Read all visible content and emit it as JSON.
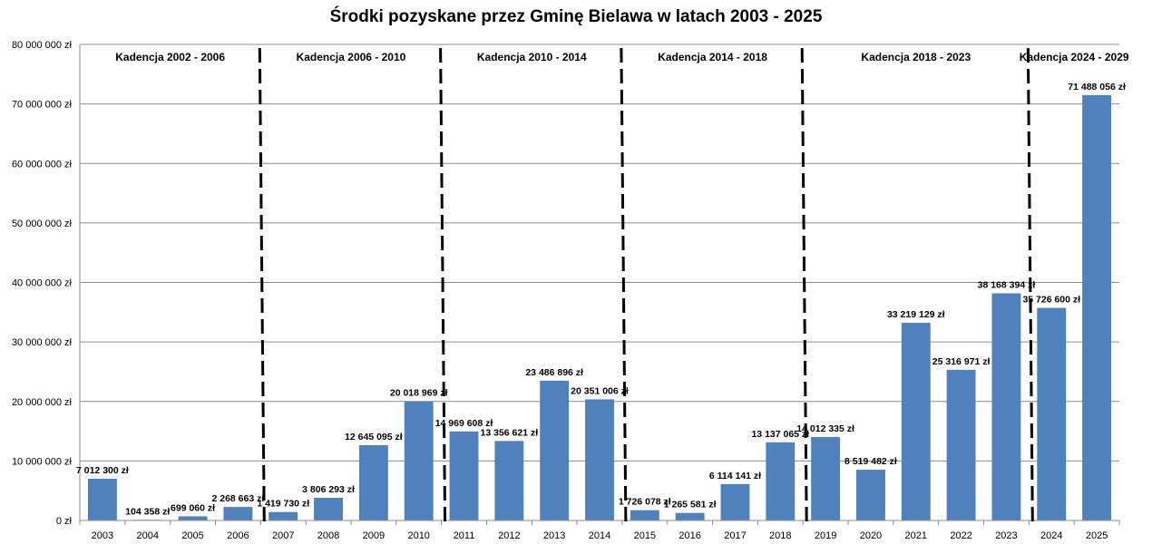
{
  "chart_data": {
    "type": "bar",
    "title": "Środki pozyskane przez Gminę Bielawa w latach 2003 - 2025",
    "xlabel": "",
    "ylabel": "",
    "ylim": [
      0,
      80000000
    ],
    "y_ticks": [
      0,
      10000000,
      20000000,
      30000000,
      40000000,
      50000000,
      60000000,
      70000000,
      80000000
    ],
    "y_tick_labels": [
      "0 zł",
      "10 000 000 zł",
      "20 000 000 zł",
      "30 000 000 zł",
      "40 000 000 zł",
      "50 000 000 zł",
      "60 000 000 zł",
      "70 000 000 zł",
      "80 000 000 zł"
    ],
    "categories": [
      "2003",
      "2004",
      "2005",
      "2006",
      "2007",
      "2008",
      "2009",
      "2010",
      "2011",
      "2012",
      "2013",
      "2014",
      "2015",
      "2016",
      "2017",
      "2018",
      "2019",
      "2020",
      "2021",
      "2022",
      "2023",
      "2024",
      "2025"
    ],
    "values": [
      7012300,
      104358,
      699060,
      2268663,
      1419730,
      3806293,
      12645095,
      20018969,
      14969608,
      13356621,
      23486896,
      20351006,
      1726078,
      1265581,
      6114141,
      13137065,
      14012335,
      8519482,
      33219129,
      25316971,
      38168394,
      35726600,
      71488056
    ],
    "data_labels": [
      "7 012 300 zł",
      "104 358 zł",
      "699 060 zł",
      "2 268 663 zł",
      "1 419 730 zł",
      "3 806 293 zł",
      "12 645 095 zł",
      "20 018 969 zł",
      "14 969 608 zł",
      "13 356 621 zł",
      "23 486 896 zł",
      "20 351 006 zł",
      "1 726 078 zł",
      "1 265 581 zł",
      "6 114 141 zł",
      "13 137 065 zł",
      "14 012 335 zł",
      "8 519 482 zł",
      "33 219 129 zł",
      "25 316 971 zł",
      "38 168 394 zł",
      "35 726 600 zł",
      "71 488 056 zł"
    ],
    "bar_color": "#4f81bd",
    "grid": true,
    "legend": "none",
    "terms": [
      {
        "label": "Kadencja 2002 - 2006",
        "first": "2003",
        "last": "2006"
      },
      {
        "label": "Kadencja 2006 - 2010",
        "first": "2007",
        "last": "2010"
      },
      {
        "label": "Kadencja 2010 - 2014",
        "first": "2011",
        "last": "2014"
      },
      {
        "label": "Kadencja 2014 - 2018",
        "first": "2015",
        "last": "2018"
      },
      {
        "label": "Kadencja 2018 - 2023",
        "first": "2019",
        "last": "2023"
      },
      {
        "label": "Kadencja 2024 - 2029",
        "first": "2024",
        "last": "2025"
      }
    ]
  }
}
